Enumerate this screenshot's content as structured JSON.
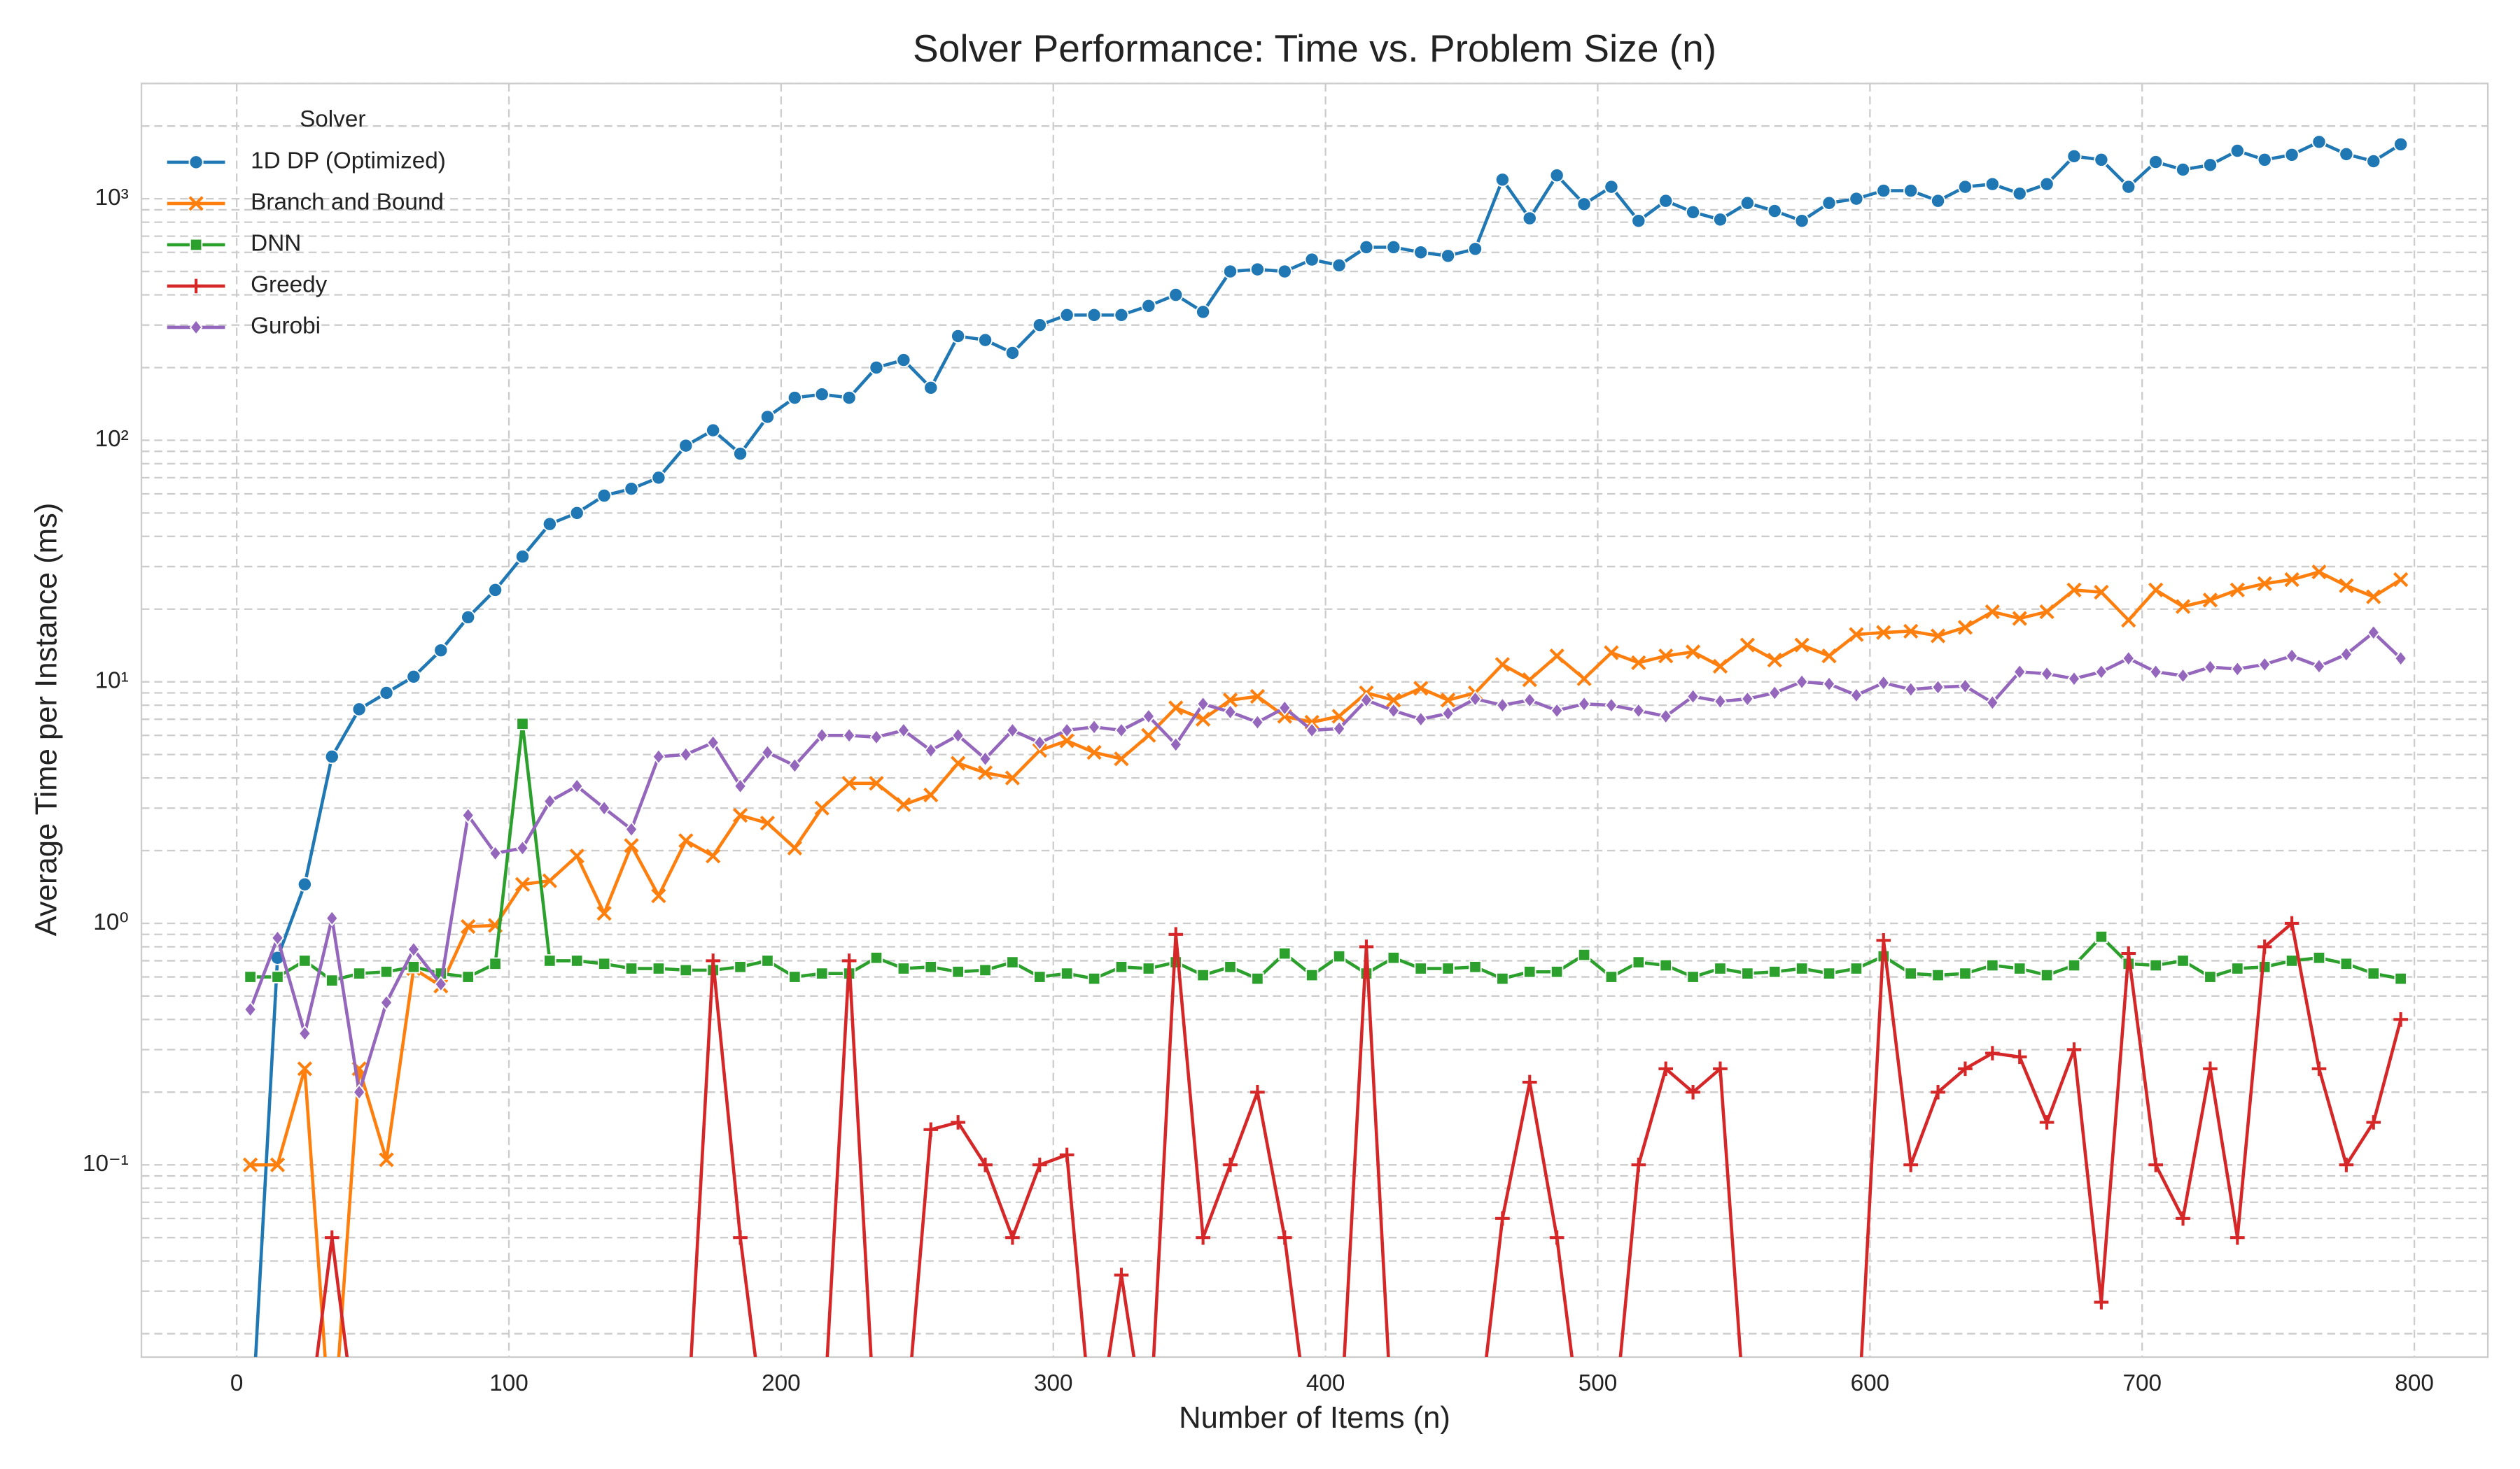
{
  "chart_data": {
    "type": "line",
    "title": "Solver Performance: Time vs. Problem Size (n)",
    "xlabel": "Number of Items (n)",
    "ylabel": "Average Time per Instance (ms)",
    "yscale": "log",
    "grid": true,
    "legend": "upper left",
    "legend_title": "Solver",
    "xlim": [
      -35,
      827
    ],
    "ylim": [
      0.016,
      3000
    ],
    "xticks": [
      0,
      100,
      200,
      300,
      400,
      500,
      600,
      700,
      800
    ],
    "yticks": [
      {
        "value": 0.1,
        "label": "10⁻¹"
      },
      {
        "value": 1,
        "label": "10⁰"
      },
      {
        "value": 10,
        "label": "10¹"
      },
      {
        "value": 100,
        "label": "10²"
      },
      {
        "value": 1000,
        "label": "10³"
      }
    ],
    "yminorticks": [
      0.02,
      0.03,
      0.04,
      0.05,
      0.06,
      0.07,
      0.08,
      0.09,
      0.2,
      0.3,
      0.4,
      0.5,
      0.6,
      0.7,
      0.8,
      0.9,
      2,
      3,
      4,
      5,
      6,
      7,
      8,
      9,
      20,
      30,
      40,
      50,
      60,
      70,
      80,
      90,
      200,
      300,
      400,
      500,
      600,
      700,
      800,
      900,
      2000,
      3000
    ],
    "x": [
      5,
      15,
      25,
      35,
      45,
      55,
      65,
      75,
      85,
      95,
      105,
      115,
      125,
      135,
      145,
      155,
      165,
      175,
      185,
      195,
      205,
      215,
      225,
      235,
      245,
      255,
      265,
      275,
      285,
      295,
      305,
      315,
      325,
      335,
      345,
      355,
      365,
      375,
      385,
      395,
      405,
      415,
      425,
      435,
      445,
      455,
      465,
      475,
      485,
      495,
      505,
      515,
      525,
      535,
      545,
      555,
      565,
      575,
      585,
      595,
      605,
      615,
      625,
      635,
      645,
      655,
      665,
      675,
      685,
      695,
      705,
      715,
      725,
      735,
      745,
      755,
      765,
      775,
      785,
      795
    ],
    "series": [
      {
        "name": "1D DP (Optimized)",
        "color": "#1f77b4",
        "marker": "o",
        "values": [
          0,
          0.72,
          1.45,
          4.9,
          7.7,
          9,
          10.5,
          13.5,
          18.5,
          24,
          33,
          45,
          50,
          59,
          63,
          70,
          95,
          110,
          88,
          125,
          150,
          155,
          150,
          200,
          215,
          165,
          270,
          260,
          230,
          300,
          330,
          330,
          330,
          360,
          400,
          340,
          500,
          510,
          500,
          560,
          530,
          630,
          630,
          600,
          580,
          620,
          1200,
          830,
          1250,
          950,
          1120,
          810,
          980,
          880,
          820,
          960,
          890,
          810,
          960,
          1000,
          1080,
          1080,
          980,
          1120,
          1150,
          1050,
          1150,
          1500,
          1450,
          1120,
          1420,
          1320,
          1380,
          1580,
          1450,
          1520,
          1720,
          1530,
          1430,
          1680
        ]
      },
      {
        "name": "Branch and Bound",
        "color": "#ff7f0e",
        "marker": "x",
        "values": [
          0.1,
          0.1,
          0.25,
          0,
          0.25,
          0.105,
          0.65,
          0.55,
          0.97,
          0.98,
          1.45,
          1.5,
          1.9,
          1.1,
          2.1,
          1.3,
          2.2,
          1.9,
          2.8,
          2.6,
          2.05,
          3.0,
          3.8,
          3.8,
          3.1,
          3.4,
          4.6,
          4.2,
          4.0,
          5.2,
          5.7,
          5.1,
          4.8,
          6.0,
          7.8,
          7.0,
          8.4,
          8.7,
          7.2,
          6.8,
          7.2,
          9.0,
          8.4,
          9.4,
          8.4,
          9.0,
          11.8,
          10.2,
          12.8,
          10.3,
          13.2,
          12.0,
          12.8,
          13.3,
          11.6,
          14.2,
          12.3,
          14.2,
          12.8,
          15.7,
          16.0,
          16.2,
          15.5,
          16.8,
          19.5,
          18.3,
          19.5,
          24,
          23.5,
          18,
          24,
          20.5,
          21.8,
          24,
          25.5,
          26.5,
          28.5,
          25,
          22.5,
          26.5
        ]
      },
      {
        "name": "DNN",
        "color": "#2ca02c",
        "marker": "s",
        "values": [
          0.6,
          0.6,
          0.7,
          0.58,
          0.62,
          0.63,
          0.66,
          0.62,
          0.6,
          0.68,
          6.7,
          0.7,
          0.7,
          0.68,
          0.65,
          0.65,
          0.64,
          0.64,
          0.66,
          0.7,
          0.6,
          0.62,
          0.62,
          0.72,
          0.65,
          0.66,
          0.63,
          0.64,
          0.69,
          0.6,
          0.62,
          0.59,
          0.66,
          0.65,
          0.69,
          0.61,
          0.66,
          0.59,
          0.75,
          0.61,
          0.73,
          0.62,
          0.72,
          0.65,
          0.65,
          0.66,
          0.59,
          0.63,
          0.63,
          0.74,
          0.6,
          0.69,
          0.67,
          0.6,
          0.65,
          0.62,
          0.63,
          0.65,
          0.62,
          0.65,
          0.73,
          0.62,
          0.61,
          0.62,
          0.67,
          0.65,
          0.61,
          0.67,
          0.88,
          0.68,
          0.67,
          0.7,
          0.6,
          0.65,
          0.66,
          0.7,
          0.72,
          0.68,
          0.62,
          0.59
        ]
      },
      {
        "name": "Greedy",
        "color": "#d62728",
        "marker": "+",
        "values": [
          0,
          0,
          0,
          0.05,
          0,
          0,
          0,
          0,
          0,
          0,
          0,
          0,
          0,
          0,
          0,
          0,
          0,
          0.7,
          0.05,
          0,
          0,
          0,
          0.7,
          0,
          0,
          0.14,
          0.15,
          0.1,
          0.05,
          0.1,
          0.11,
          0,
          0.035,
          0,
          0.9,
          0.05,
          0.1,
          0.2,
          0.05,
          0,
          0,
          0.8,
          0,
          0,
          0,
          0,
          0.06,
          0.22,
          0.05,
          0,
          0,
          0.1,
          0.25,
          0.2,
          0.25,
          0,
          0,
          0,
          0,
          0,
          0.85,
          0.1,
          0.2,
          0.25,
          0.29,
          0.28,
          0.15,
          0.3,
          0.027,
          0.75,
          0.1,
          0.06,
          0.25,
          0.05,
          0.8,
          1.0,
          0.25,
          0.1,
          0.15,
          0.4
        ]
      },
      {
        "name": "Gurobi",
        "color": "#9467bd",
        "marker": "D",
        "values": [
          0.44,
          0.87,
          0.35,
          1.05,
          0.2,
          0.47,
          0.78,
          0.56,
          2.8,
          1.95,
          2.05,
          3.2,
          3.7,
          3.0,
          2.45,
          4.9,
          5.0,
          5.6,
          3.7,
          5.1,
          4.5,
          6.0,
          6.0,
          5.9,
          6.3,
          5.2,
          6.0,
          4.8,
          6.3,
          5.6,
          6.3,
          6.5,
          6.3,
          7.2,
          5.5,
          8.1,
          7.5,
          6.8,
          7.8,
          6.3,
          6.4,
          8.4,
          7.6,
          7.0,
          7.4,
          8.5,
          8.0,
          8.4,
          7.6,
          8.1,
          8.0,
          7.6,
          7.2,
          8.7,
          8.3,
          8.5,
          9.0,
          10.0,
          9.8,
          8.8,
          9.9,
          9.3,
          9.5,
          9.6,
          8.2,
          11.0,
          10.8,
          10.3,
          11.0,
          12.5,
          11.0,
          10.6,
          11.5,
          11.3,
          11.8,
          12.8,
          11.6,
          13.0,
          16,
          12.5
        ]
      }
    ]
  }
}
